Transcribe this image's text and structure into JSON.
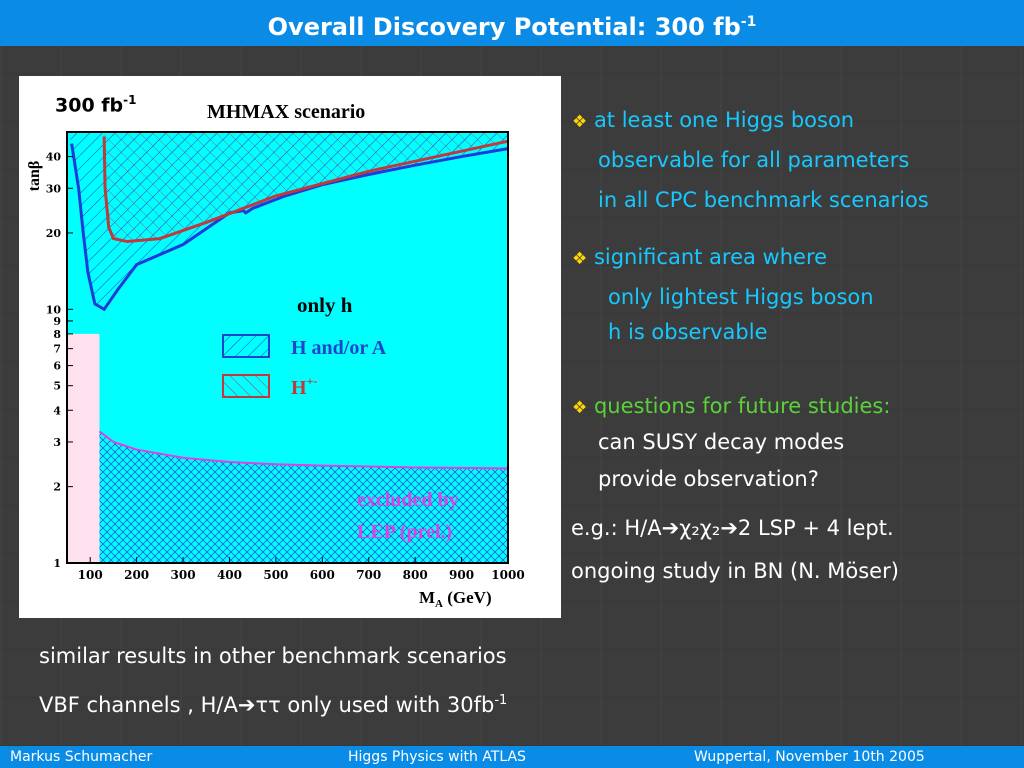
{
  "header": {
    "title": "Overall Discovery Potential: 300 fb",
    "title_sup": "-1"
  },
  "chart_data": {
    "type": "area",
    "title": "MHMAX scenario",
    "luminosity_label": "300 fb",
    "luminosity_sup": "-1",
    "xlabel_main": "M",
    "xlabel_sub": "A",
    "xlabel_unit": " (GeV)",
    "ylabel": "tanβ",
    "xlim": [
      50,
      1000
    ],
    "ylim": [
      1,
      50
    ],
    "yscale": "log",
    "x_ticks": [
      100,
      200,
      300,
      400,
      500,
      600,
      700,
      800,
      900,
      1000
    ],
    "y_ticks": [
      1,
      2,
      3,
      4,
      5,
      6,
      7,
      8,
      9,
      10,
      20,
      30,
      40
    ],
    "region_label": "only h",
    "legend": [
      {
        "label": "H and/or A",
        "sup": "",
        "color": "#2244cc"
      },
      {
        "label": "H",
        "sup": "+-",
        "color": "#c0393b"
      }
    ],
    "excluded_label_1": "excluded by",
    "excluded_label_2": "LEP (prel.)",
    "colors": {
      "fill": "#00ffff",
      "blue_contour": "#1f3bd9",
      "red_contour": "#c0393b",
      "lep": "#e040e0"
    },
    "series": [
      {
        "name": "H and/or A",
        "x": [
          60,
          75,
          85,
          95,
          110,
          130,
          160,
          200,
          300,
          400,
          430,
          435,
          450,
          520,
          600,
          700,
          800,
          900,
          1000
        ],
        "y": [
          45,
          30,
          20,
          14,
          10.5,
          10,
          12,
          15,
          18,
          24,
          24.5,
          24,
          25,
          28,
          31,
          34,
          37,
          40,
          43
        ]
      },
      {
        "name": "H+-",
        "x": [
          130,
          132,
          140,
          150,
          180,
          250,
          350,
          500,
          700,
          900,
          1000
        ],
        "y": [
          48,
          30,
          21,
          19,
          18.5,
          19,
          22,
          28,
          35,
          42,
          46
        ]
      },
      {
        "name": "LEP excluded",
        "x": [
          120,
          150,
          200,
          300,
          400,
          500,
          600,
          700,
          800,
          900,
          1000
        ],
        "y": [
          3.3,
          3,
          2.8,
          2.6,
          2.5,
          2.45,
          2.42,
          2.4,
          2.38,
          2.37,
          2.36
        ]
      }
    ]
  },
  "bullets": [
    {
      "lines": [
        "at least one Higgs boson",
        "observable for all parameters",
        "in all CPC benchmark scenarios"
      ]
    },
    {
      "lines": [
        "significant area where",
        "only lightest Higgs boson",
        "h is observable"
      ]
    },
    {
      "lines": [
        "questions for future studies:",
        "can SUSY decay modes",
        "provide observation?"
      ]
    }
  ],
  "example_line": {
    "prefix": "e.g.: H/A",
    "mid": "χ₂χ₂",
    "suffix": "2 LSP + 4 lept."
  },
  "ongoing_line": "ongoing study in BN (N. Möser)",
  "bottom": {
    "line1": "similar results in other benchmark scenarios",
    "line2_prefix": "VBF channels , H/A",
    "line2_taus": "ττ",
    "line2_suffix": " only used with 30fb",
    "line2_sup": "-1"
  },
  "footer": {
    "author": "Markus  Schumacher",
    "talk": "Higgs Physics  with ATLAS",
    "place_date": "Wuppertal, November 10th 2005"
  }
}
